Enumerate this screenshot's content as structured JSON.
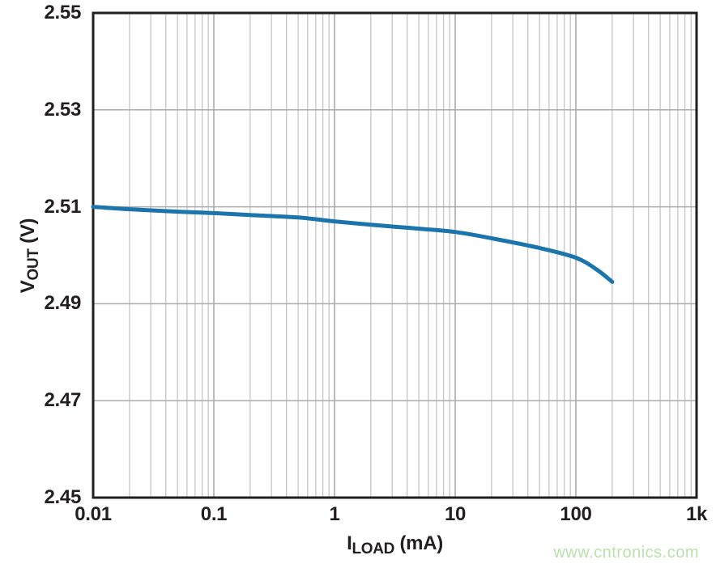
{
  "watermark": {
    "text": "www.cntronics.com",
    "color": "#b9e2aa"
  },
  "chart_data": {
    "type": "line",
    "title": "",
    "x_scale": "log",
    "xlim": [
      0.01,
      1000
    ],
    "ylim": [
      2.45,
      2.55
    ],
    "xlabel": {
      "base": "I",
      "sub": "LOAD",
      "rest": " (mA)"
    },
    "ylabel": {
      "base": "V",
      "sub": "OUT",
      "rest": " (V)"
    },
    "xticks": [
      {
        "value": 0.01,
        "label": "0.01"
      },
      {
        "value": 0.1,
        "label": "0.1"
      },
      {
        "value": 1,
        "label": "1"
      },
      {
        "value": 10,
        "label": "10"
      },
      {
        "value": 100,
        "label": "100"
      },
      {
        "value": 1000,
        "label": "1k"
      }
    ],
    "yticks": [
      {
        "value": 2.45,
        "label": "2.45"
      },
      {
        "value": 2.47,
        "label": "2.47"
      },
      {
        "value": 2.49,
        "label": "2.49"
      },
      {
        "value": 2.51,
        "label": "2.51"
      },
      {
        "value": 2.53,
        "label": "2.53"
      },
      {
        "value": 2.55,
        "label": "2.55"
      }
    ],
    "grid": {
      "vertical": "log-minor-and-decades",
      "horizontal": "at-yticks",
      "on": true
    },
    "legend": "none",
    "series": [
      {
        "name": "VOUT vs ILOAD",
        "color": "#1b74ab",
        "x": [
          0.01,
          0.02,
          0.05,
          0.1,
          0.2,
          0.5,
          1,
          2,
          5,
          10,
          20,
          50,
          100,
          150,
          200
        ],
        "y": [
          2.51,
          2.5095,
          2.509,
          2.5087,
          2.5083,
          2.5078,
          2.507,
          2.5063,
          2.5055,
          2.5048,
          2.5035,
          2.5015,
          2.4995,
          2.497,
          2.4945
        ]
      }
    ],
    "colors": {
      "grid_minor": "#c6c6c8",
      "grid_major": "#ababad",
      "frame": "#1f1f21",
      "text": "#231f20"
    }
  }
}
